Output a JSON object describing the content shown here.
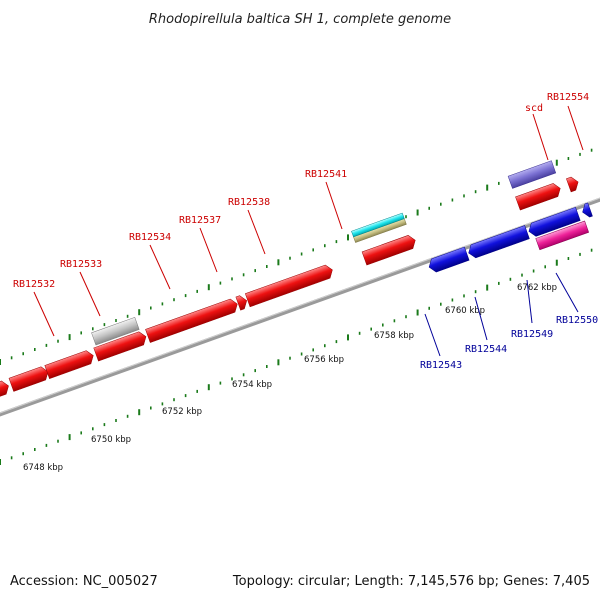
{
  "title": "Rhodopirellula baltica SH 1, complete genome",
  "footer": {
    "accession": "Accession: NC_005027",
    "summary": "Topology: circular; Length: 7,145,576 bp; Genes: 7,405"
  },
  "colors": {
    "forward_label": "#cc0000",
    "reverse_label": "#000099",
    "backbone": "#888888",
    "ticks": "#1a7a1a",
    "cds_forward": "#ee1111",
    "cds_reverse": "#1111dd"
  },
  "kbp_ticks": [
    "6748 kbp",
    "6750 kbp",
    "6752 kbp",
    "6754 kbp",
    "6756 kbp",
    "6758 kbp",
    "6760 kbp",
    "6762 kbp"
  ],
  "forward_labels": [
    "RB12532",
    "RB12533",
    "RB12534",
    "RB12537",
    "RB12538",
    "RB12541",
    "scd",
    "RB12554"
  ],
  "reverse_labels": [
    "RB12543",
    "RB12544",
    "RB12549",
    "RB12550"
  ]
}
